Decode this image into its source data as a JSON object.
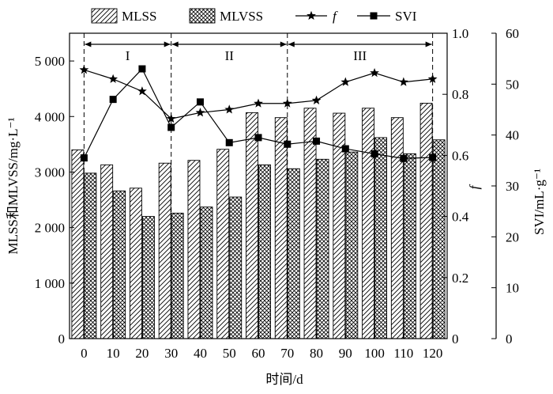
{
  "chart_data": {
    "type": "bar",
    "categories": [
      "0",
      "10",
      "20",
      "30",
      "40",
      "50",
      "60",
      "70",
      "80",
      "90",
      "100",
      "110",
      "120"
    ],
    "series": [
      {
        "name": "MLSS",
        "type": "bar",
        "axis": "left",
        "pattern": "hatch",
        "values": [
          3400,
          3130,
          2710,
          3160,
          3210,
          3410,
          4070,
          3980,
          4150,
          4060,
          4150,
          3980,
          4240
        ]
      },
      {
        "name": "MLVSS",
        "type": "bar",
        "axis": "left",
        "pattern": "crosshatch",
        "values": [
          2980,
          2660,
          2200,
          2260,
          2370,
          2550,
          3130,
          3060,
          3230,
          3360,
          3620,
          3330,
          3580
        ]
      },
      {
        "name": "f",
        "type": "line",
        "axis": "right1",
        "marker": "star",
        "values": [
          0.88,
          0.85,
          0.81,
          0.72,
          0.74,
          0.75,
          0.77,
          0.77,
          0.78,
          0.84,
          0.87,
          0.84,
          0.85
        ]
      },
      {
        "name": "SVI",
        "type": "line",
        "axis": "right2",
        "marker": "square",
        "values": [
          35.5,
          47,
          53,
          41.5,
          46.5,
          38.5,
          39.5,
          38.2,
          38.8,
          37.3,
          36.3,
          35.4,
          35.6
        ]
      }
    ],
    "xlabel": "时间/d",
    "ylabel": "MLSS和MLVSS/mg·L⁻¹",
    "y2label": "f",
    "y3label": "SVI/mL·g⁻¹",
    "ylim": [
      0,
      5500
    ],
    "y2lim": [
      0,
      1.0
    ],
    "y3lim": [
      0,
      60
    ],
    "yticks": [
      "0",
      "1 000",
      "2 000",
      "3 000",
      "4 000",
      "5 000"
    ],
    "y2ticks": [
      "0",
      "0.2",
      "0.4",
      "0.6",
      "0.8",
      "1.0"
    ],
    "y3ticks": [
      "0",
      "10",
      "20",
      "30",
      "40",
      "50",
      "60"
    ],
    "phases": [
      {
        "label": "I",
        "start": "0",
        "end": "30"
      },
      {
        "label": "II",
        "start": "30",
        "end": "70"
      },
      {
        "label": "III",
        "start": "70",
        "end": "120"
      }
    ],
    "legend_position": "top",
    "grid": false
  }
}
